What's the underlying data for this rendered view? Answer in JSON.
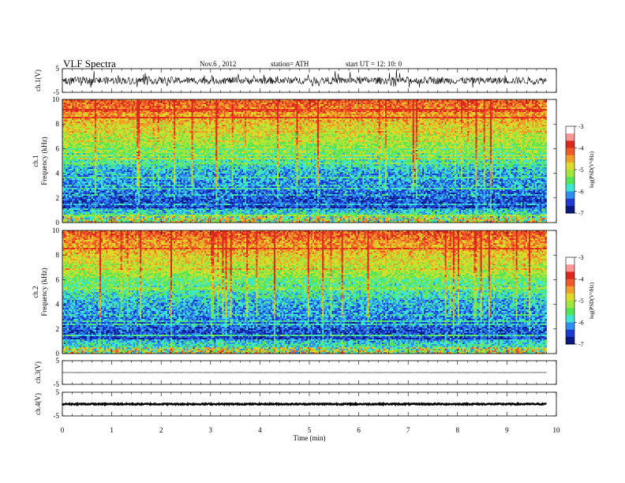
{
  "header": {
    "title": "VLF  Spectra",
    "date": "Nov.6  , 2012",
    "station": "station= ATH",
    "start": "start  UT  =    12: 10: 0"
  },
  "colors": {
    "spectrum_scale": [
      "#0a1a80",
      "#1e3cd2",
      "#2f8ff0",
      "#3ce6d2",
      "#55e655",
      "#a0e63c",
      "#dcdc28",
      "#f0a028",
      "#f05a28",
      "#dc281e",
      "#ff9696",
      "#ffffff"
    ]
  },
  "chart_data": [
    {
      "type": "line",
      "name": "ch1-waveform",
      "ylabel": "ch.1(V)",
      "yticks": [
        "5",
        "-5"
      ],
      "ylim": [
        -5,
        5
      ],
      "xlim": [
        0,
        10
      ],
      "data_end_min": 9.8,
      "baseline": 0.0,
      "spread": 1.5
    },
    {
      "type": "heatmap",
      "name": "ch1-spectrogram",
      "ylabel": "ch.1\nFrequency  (kHz)",
      "ylabel_channel": "ch.1",
      "ylabel_freq": "Frequency  (kHz)",
      "yticks": [
        "0",
        "2",
        "4",
        "6",
        "8",
        "10"
      ],
      "ylim": [
        0,
        10
      ],
      "xlim": [
        0,
        10
      ],
      "data_end_min": 9.8,
      "colorbar": {
        "label": "log(PSD(V²/Hz)",
        "ticks": [
          "-3",
          "-4",
          "-5",
          "-6",
          "-7"
        ],
        "range": [
          -7,
          -3
        ]
      }
    },
    {
      "type": "heatmap",
      "name": "ch2-spectrogram",
      "ylabel_channel": "ch.2",
      "ylabel_freq": "Frequency  (kHz)",
      "yticks": [
        "0",
        "2",
        "4",
        "6",
        "8",
        "10"
      ],
      "ylim": [
        0,
        10
      ],
      "xlim": [
        0,
        10
      ],
      "data_end_min": 9.8,
      "colorbar": {
        "label": "log(PSD(V²/Hz)",
        "ticks": [
          "-3",
          "-4",
          "-5",
          "-6",
          "-7"
        ],
        "range": [
          -7,
          -3
        ]
      }
    },
    {
      "type": "line",
      "name": "ch3-waveform",
      "ylabel": "ch.3(V)",
      "yticks": [
        "5",
        "-5"
      ],
      "ylim": [
        -5,
        5
      ],
      "xlim": [
        0,
        10
      ],
      "data_end_min": 9.8,
      "baseline": 0.0,
      "spread": 0.05
    },
    {
      "type": "line",
      "name": "ch4-waveform",
      "ylabel": "ch.4(V)",
      "yticks": [
        "5",
        "-5"
      ],
      "ylim": [
        -5,
        5
      ],
      "xlim": [
        0,
        10
      ],
      "data_end_min": 9.8,
      "baseline": 0.0,
      "spread": 0.25
    }
  ],
  "xaxis": {
    "label": "Time  (min)",
    "ticks": [
      "0",
      "1",
      "2",
      "3",
      "4",
      "5",
      "6",
      "7",
      "8",
      "9",
      "10"
    ]
  }
}
